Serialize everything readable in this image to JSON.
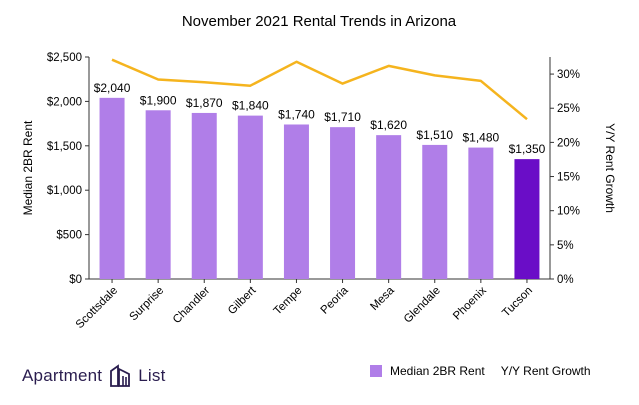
{
  "chart_data": {
    "type": "bar",
    "title": "November 2021 Rental Trends in Arizona",
    "ylabel": "Median 2BR Rent",
    "y2label": "Y/Y Rent Growth",
    "categories": [
      "Scottsdale",
      "Surprise",
      "Chandler",
      "Gilbert",
      "Tempe",
      "Peoria",
      "Mesa",
      "Glendale",
      "Phoenix",
      "Tucson"
    ],
    "series": [
      {
        "name": "Median 2BR Rent",
        "type": "bar",
        "axis": "left",
        "values": [
          2040,
          1900,
          1870,
          1840,
          1740,
          1710,
          1620,
          1510,
          1480,
          1350
        ],
        "labels": [
          "$2,040",
          "$1,900",
          "$1,870",
          "$1,840",
          "$1,740",
          "$1,710",
          "$1,620",
          "$1,510",
          "$1,480",
          "$1,350"
        ],
        "color": "#b07ee8",
        "highlight_color": "#6a0dc7",
        "highlight_index": 9
      },
      {
        "name": "Y/Y Rent Growth",
        "type": "line",
        "axis": "right",
        "values": [
          32.1,
          29.2,
          28.8,
          28.3,
          31.8,
          28.6,
          31.2,
          29.8,
          29.0,
          23.4
        ],
        "color": "#f5b41e"
      }
    ],
    "ylim": [
      0,
      2500
    ],
    "yticks": [
      "$0",
      "$500",
      "$1,000",
      "$1,500",
      "$2,000",
      "$2,500"
    ],
    "y2lim": [
      0,
      32.5
    ],
    "y2ticks": [
      "0%",
      "5%",
      "10%",
      "15%",
      "20%",
      "25%",
      "30%"
    ],
    "grid": false,
    "legend_position": "bottom-right"
  },
  "brand": {
    "name_part1": "Apartment",
    "name_part2": "List"
  }
}
